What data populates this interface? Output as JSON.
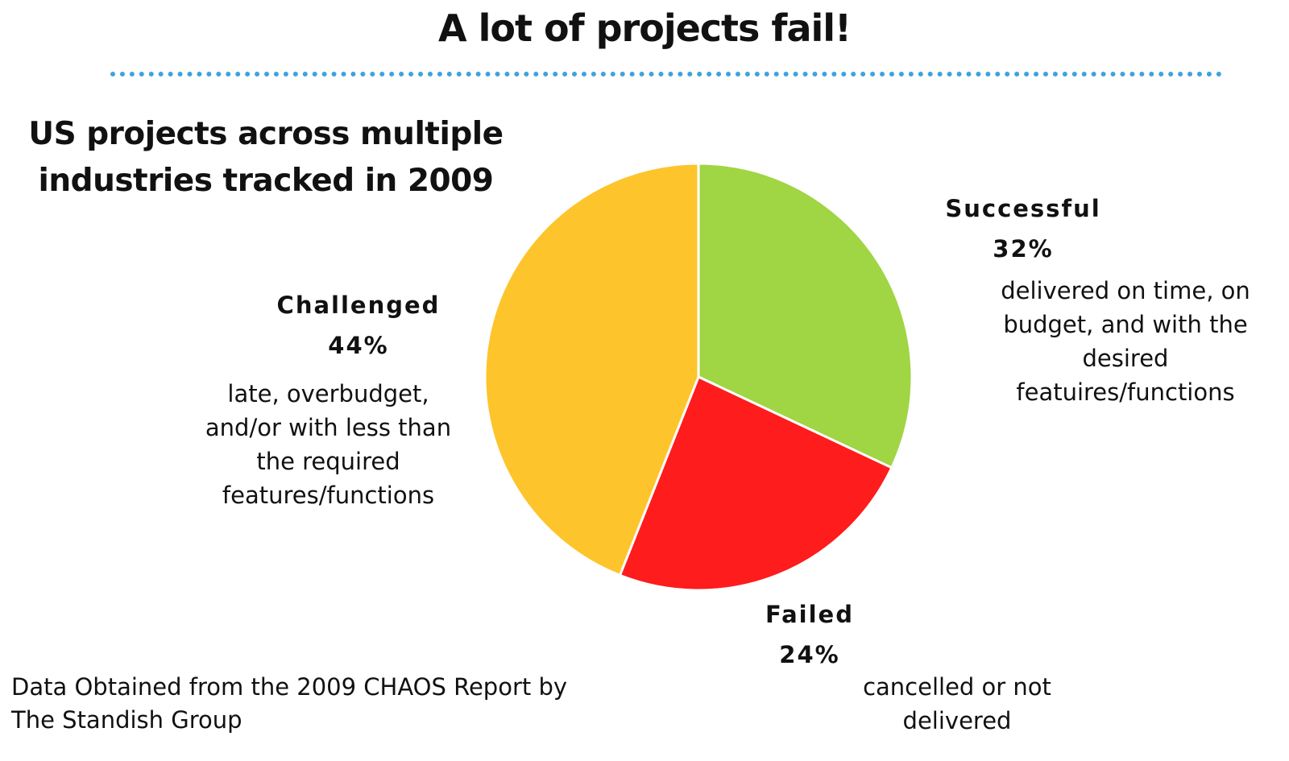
{
  "header": {
    "title": "A lot of projects fail!"
  },
  "source_note": "Data Obtained from the 2009 CHAOS Report by The Standish Group",
  "chart_data": {
    "type": "pie",
    "title": "US projects across multiple industries tracked in 2009",
    "unit": "%",
    "slices": [
      {
        "name": "Successful",
        "value": 32,
        "value_label": "32%",
        "description": "delivered on time, on budget, and with the desired featuires/functions",
        "color": "#a0d544"
      },
      {
        "name": "Failed",
        "value": 24,
        "value_label": "24%",
        "description": "cancelled or not delivered",
        "color": "#fe1c1c"
      },
      {
        "name": "Challenged",
        "value": 44,
        "value_label": "44%",
        "description": "late, overbudget, and/or with less than the required features/functions",
        "color": "#fdc42c"
      }
    ]
  }
}
